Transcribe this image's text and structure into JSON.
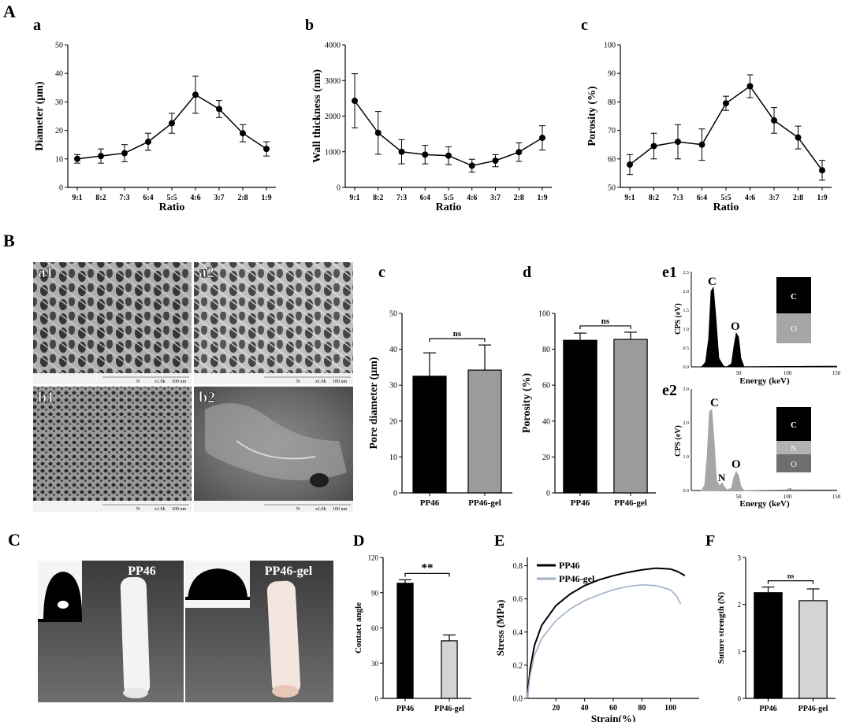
{
  "panel_letters": {
    "A": "A",
    "B": "B",
    "C": "C",
    "D": "D",
    "E": "E",
    "F": "F"
  },
  "ratio_ticks": [
    "9:1",
    "8:2",
    "7:3",
    "6:4",
    "5:5",
    "4:6",
    "3:7",
    "2:8",
    "1:9"
  ],
  "ns": "ns",
  "sig": "**",
  "sem": {
    "scale_label": "N",
    "mag_label": "x1.0k",
    "scale_value": "100 um",
    "a1": "a1",
    "a2": "a2",
    "b1": "b1",
    "b2": "b2"
  },
  "photos": {
    "left_label": "PP46",
    "right_label": "PP46-gel"
  },
  "eds": {
    "e1": {
      "label": "e1",
      "ylabel": "CPS (eV)",
      "xlabel": "Energy (keV)",
      "yticks": [
        "0.0",
        "0.5",
        "1.0",
        "1.5",
        "2.0",
        "2.5"
      ],
      "xticks": [
        "50",
        "100",
        "150"
      ],
      "peaks": [
        "C",
        "O"
      ],
      "legend": [
        "C",
        "O"
      ]
    },
    "e2": {
      "label": "e2",
      "ylabel": "CPS (eV)",
      "xlabel": "Energy (keV)",
      "yticks": [
        "0.0",
        "1.0",
        "2.0",
        "3.0"
      ],
      "xticks": [
        "50",
        "100",
        "150"
      ],
      "peaks": [
        "C",
        "N",
        "O"
      ],
      "legend": [
        "C",
        "N",
        "O"
      ]
    }
  },
  "chart_data": [
    {
      "id": "Aa",
      "type": "line",
      "label": "a",
      "xlabel": "Ratio",
      "ylabel": "Diameter (μm)",
      "categories": [
        "9:1",
        "8:2",
        "7:3",
        "6:4",
        "5:5",
        "4:6",
        "3:7",
        "2:8",
        "1:9"
      ],
      "values": [
        10,
        11,
        12,
        16,
        22.5,
        32.5,
        27.5,
        19,
        13.5
      ],
      "errors": [
        1.5,
        2.5,
        3,
        3,
        3.5,
        6.5,
        3,
        3,
        2.5
      ],
      "ylim": [
        0,
        50
      ],
      "yticks": [
        0,
        10,
        20,
        30,
        40,
        50
      ]
    },
    {
      "id": "Ab",
      "type": "line",
      "label": "b",
      "xlabel": "Ratio",
      "ylabel": "Wall thickness (nm)",
      "categories": [
        "9:1",
        "8:2",
        "7:3",
        "6:4",
        "5:5",
        "4:6",
        "3:7",
        "2:8",
        "1:9"
      ],
      "values": [
        2430,
        1530,
        1000,
        920,
        890,
        610,
        750,
        990,
        1390
      ],
      "errors": [
        760,
        600,
        340,
        260,
        250,
        180,
        170,
        260,
        340
      ],
      "ylim": [
        0,
        4000
      ],
      "yticks": [
        0,
        1000,
        2000,
        3000,
        4000
      ]
    },
    {
      "id": "Ac",
      "type": "line",
      "label": "c",
      "xlabel": "Ratio",
      "ylabel": "Porosity (%)",
      "categories": [
        "9:1",
        "8:2",
        "7:3",
        "6:4",
        "5:5",
        "4:6",
        "3:7",
        "2:8",
        "1:9"
      ],
      "values": [
        58,
        64.5,
        66,
        65,
        79.5,
        85.5,
        73.5,
        67.5,
        56
      ],
      "errors": [
        3.5,
        4.5,
        6,
        5.5,
        2.5,
        4,
        4.5,
        4,
        3.5
      ],
      "ylim": [
        50,
        100
      ],
      "yticks": [
        50,
        60,
        70,
        80,
        90,
        100
      ]
    },
    {
      "id": "Bc",
      "type": "bar",
      "label": "c",
      "ylabel": "Pore diameter (μm)",
      "categories": [
        "PP46",
        "PP46-gel"
      ],
      "values": [
        32.5,
        34.2
      ],
      "errors": [
        6.5,
        7
      ],
      "ylim": [
        0,
        50
      ],
      "yticks": [
        0,
        10,
        20,
        30,
        40,
        50
      ],
      "annotation": "ns"
    },
    {
      "id": "Bd",
      "type": "bar",
      "label": "d",
      "ylabel": "Porosity (%)",
      "categories": [
        "PP46",
        "PP46-gel"
      ],
      "values": [
        85,
        85.5
      ],
      "errors": [
        4,
        4
      ],
      "ylim": [
        0,
        100
      ],
      "yticks": [
        0,
        20,
        40,
        60,
        80,
        100
      ],
      "annotation": "ns"
    },
    {
      "id": "D",
      "type": "bar",
      "ylabel": "Contact angle",
      "categories": [
        "PP46",
        "PP46-gel"
      ],
      "values": [
        98,
        49
      ],
      "errors": [
        3,
        5
      ],
      "ylim": [
        0,
        120
      ],
      "yticks": [
        0,
        30,
        60,
        90,
        120
      ],
      "annotation": "**"
    },
    {
      "id": "E",
      "type": "line",
      "xlabel": "Strain(%)",
      "ylabel": "Stress (MPa)",
      "xlim": [
        0,
        120
      ],
      "ylim": [
        0,
        0.85
      ],
      "xticks": [
        20,
        40,
        60,
        80,
        100
      ],
      "yticks": [
        0.0,
        0.2,
        0.4,
        0.6,
        0.8
      ],
      "series": [
        {
          "name": "PP46",
          "x": [
            0,
            2,
            5,
            10,
            20,
            30,
            40,
            50,
            60,
            70,
            80,
            90,
            100,
            105,
            110
          ],
          "y": [
            0,
            0.18,
            0.32,
            0.44,
            0.56,
            0.63,
            0.68,
            0.715,
            0.74,
            0.76,
            0.775,
            0.785,
            0.78,
            0.765,
            0.74
          ]
        },
        {
          "name": "PP46-gel",
          "x": [
            0,
            2,
            5,
            10,
            20,
            30,
            40,
            50,
            60,
            70,
            80,
            90,
            100,
            104,
            107
          ],
          "y": [
            0,
            0.14,
            0.26,
            0.36,
            0.47,
            0.54,
            0.59,
            0.625,
            0.655,
            0.675,
            0.685,
            0.68,
            0.655,
            0.62,
            0.57
          ]
        }
      ]
    },
    {
      "id": "F",
      "type": "bar",
      "ylabel": "Suture strength (N)",
      "categories": [
        "PP46",
        "PP46-gel"
      ],
      "values": [
        2.25,
        2.08
      ],
      "errors": [
        0.12,
        0.25
      ],
      "ylim": [
        0,
        3
      ],
      "yticks": [
        0,
        1,
        2,
        3
      ],
      "annotation": "ns"
    }
  ]
}
